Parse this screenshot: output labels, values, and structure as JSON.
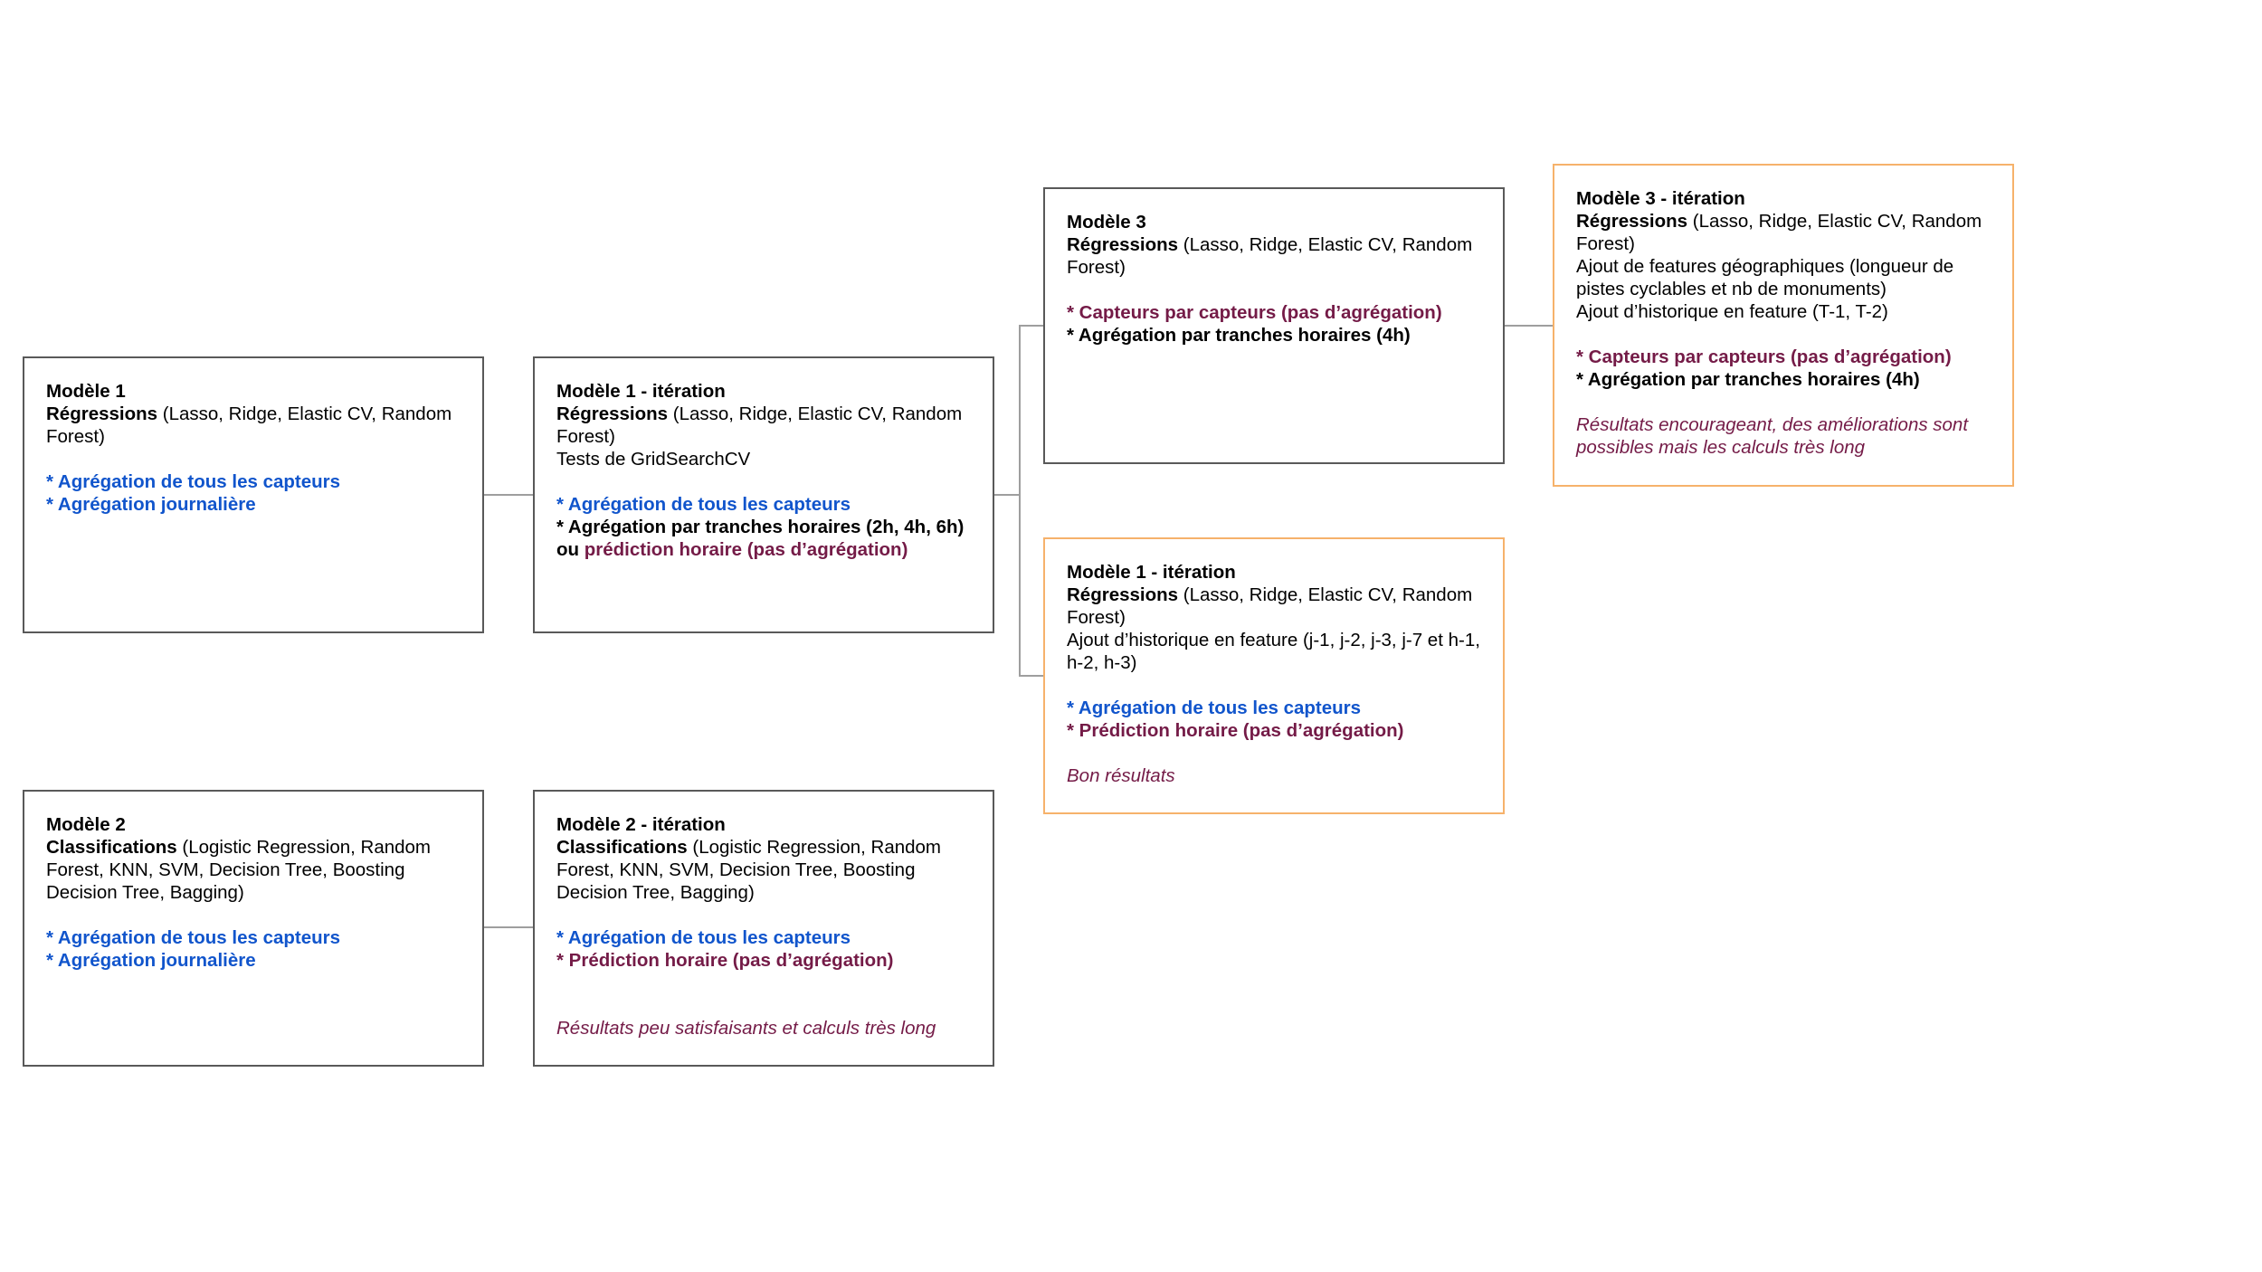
{
  "colors": {
    "black": "#000000",
    "blue": "#1155cc",
    "maroon": "#741b47",
    "border": "#595959",
    "highlight_border": "#f6b26b",
    "connector": "#9e9e9e"
  },
  "boxes": {
    "m1": {
      "lines": [
        [
          {
            "t": "Modèle 1",
            "b": true,
            "c": "black"
          }
        ],
        [
          {
            "t": "Régressions",
            "b": true,
            "c": "black"
          },
          {
            "t": " (Lasso, Ridge, Elastic CV, Random Forest)",
            "c": "black"
          }
        ],
        [],
        [
          {
            "t": "* Agrégation de tous les capteurs",
            "b": true,
            "c": "blue"
          }
        ],
        [
          {
            "t": "* Agrégation journalière",
            "b": true,
            "c": "blue"
          }
        ]
      ]
    },
    "m1_iter": {
      "lines": [
        [
          {
            "t": "Modèle 1 - itération",
            "b": true,
            "c": "black"
          }
        ],
        [
          {
            "t": "Régressions",
            "b": true,
            "c": "black"
          },
          {
            "t": " (Lasso, Ridge, Elastic CV, Random Forest)",
            "c": "black"
          }
        ],
        [
          {
            "t": "Tests de GridSearchCV",
            "c": "black"
          }
        ],
        [],
        [
          {
            "t": "* Agrégation de tous les capteurs",
            "b": true,
            "c": "blue"
          }
        ],
        [
          {
            "t": "* Agrégation par tranches horaires (2h, 4h, 6h)",
            "b": true,
            "c": "black"
          }
        ],
        [
          {
            "t": "ou ",
            "b": true,
            "c": "black"
          },
          {
            "t": "prédiction horaire (pas d’agrégation)",
            "b": true,
            "c": "maroon"
          }
        ]
      ]
    },
    "m3": {
      "lines": [
        [
          {
            "t": "Modèle 3",
            "b": true,
            "c": "black"
          }
        ],
        [
          {
            "t": "Régressions",
            "b": true,
            "c": "black"
          },
          {
            "t": " (Lasso, Ridge, Elastic CV, Random Forest)",
            "c": "black"
          }
        ],
        [],
        [
          {
            "t": "* Capteurs par capteurs (pas d’agrégation)",
            "b": true,
            "c": "maroon"
          }
        ],
        [
          {
            "t": "* Agrégation par tranches horaires (4h)",
            "b": true,
            "c": "black"
          }
        ]
      ]
    },
    "m3_iter": {
      "lines": [
        [
          {
            "t": "Modèle 3 - itération",
            "b": true,
            "c": "black"
          }
        ],
        [
          {
            "t": "Régressions",
            "b": true,
            "c": "black"
          },
          {
            "t": " (Lasso, Ridge, Elastic CV, Random Forest)",
            "c": "black"
          }
        ],
        [
          {
            "t": "Ajout de features géographiques (longueur de pistes cyclables et nb de monuments)",
            "c": "black"
          }
        ],
        [
          {
            "t": "Ajout d’historique en feature (T-1, T-2)",
            "c": "black"
          }
        ],
        [],
        [
          {
            "t": "* Capteurs par capteurs (pas d’agrégation)",
            "b": true,
            "c": "maroon"
          }
        ],
        [
          {
            "t": "* Agrégation par tranches horaires (4h)",
            "b": true,
            "c": "black"
          }
        ],
        [],
        [
          {
            "t": "Résultats encourageant, des améliorations sont possibles mais les calculs très long",
            "i": true,
            "c": "maroon"
          }
        ]
      ]
    },
    "m1_iter2": {
      "lines": [
        [
          {
            "t": "Modèle 1 - itération",
            "b": true,
            "c": "black"
          }
        ],
        [
          {
            "t": "Régressions",
            "b": true,
            "c": "black"
          },
          {
            "t": " (Lasso, Ridge, Elastic CV, Random Forest)",
            "c": "black"
          }
        ],
        [
          {
            "t": "Ajout d’historique en feature (j-1, j-2, j-3, j-7 et h-1, h-2, h-3)",
            "c": "black"
          }
        ],
        [],
        [
          {
            "t": "* Agrégation de tous les capteurs",
            "b": true,
            "c": "blue"
          }
        ],
        [
          {
            "t": "* Prédiction horaire (pas d’agrégation)",
            "b": true,
            "c": "maroon"
          }
        ],
        [],
        [
          {
            "t": "Bon résultats",
            "i": true,
            "c": "maroon"
          }
        ]
      ]
    },
    "m2": {
      "lines": [
        [
          {
            "t": "Modèle 2",
            "b": true,
            "c": "black"
          }
        ],
        [
          {
            "t": "Classifications",
            "b": true,
            "c": "black"
          },
          {
            "t": " (Logistic Regression, Random Forest, KNN, SVM, Decision Tree, Boosting Decision Tree, Bagging)",
            "c": "black"
          }
        ],
        [],
        [
          {
            "t": "* Agrégation de tous les capteurs",
            "b": true,
            "c": "blue"
          }
        ],
        [
          {
            "t": "* Agrégation journalière",
            "b": true,
            "c": "blue"
          }
        ]
      ]
    },
    "m2_iter": {
      "lines": [
        [
          {
            "t": "Modèle 2 - itération",
            "b": true,
            "c": "black"
          }
        ],
        [
          {
            "t": "Classifications",
            "b": true,
            "c": "black"
          },
          {
            "t": " (Logistic Regression, Random Forest, KNN, SVM, Decision Tree, Boosting Decision Tree, Bagging)",
            "c": "black"
          }
        ],
        [],
        [
          {
            "t": "* Agrégation de tous les capteurs",
            "b": true,
            "c": "blue"
          }
        ],
        [
          {
            "t": "* Prédiction horaire (pas d’agrégation)",
            "b": true,
            "c": "maroon"
          }
        ],
        [],
        [],
        [
          {
            "t": "Résultats peu satisfaisants et calculs très long",
            "i": true,
            "c": "maroon"
          }
        ]
      ]
    }
  }
}
